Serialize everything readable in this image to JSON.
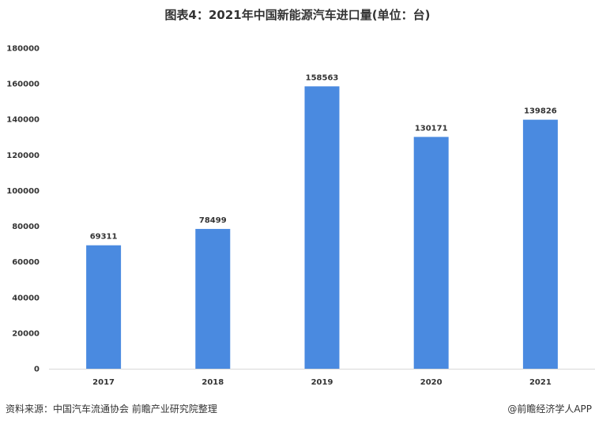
{
  "title": "图表4：2021年中国新能源汽车进口量(单位：台)",
  "source": "资料来源：中国汽车流通协会 前瞻产业研究院整理",
  "credit": "@前瞻经济学人APP",
  "colors": {
    "bar": "#4a8ae0",
    "axis": "#d9d9d9",
    "text": "#333333"
  },
  "chart_data": {
    "type": "bar",
    "title": "图表4：2021年中国新能源汽车进口量(单位：台)",
    "categories": [
      "2017",
      "2018",
      "2019",
      "2020",
      "2021"
    ],
    "values": [
      69311,
      78499,
      158563,
      130171,
      139826
    ],
    "ylim": [
      0,
      180000
    ],
    "yticks": [
      0,
      20000,
      40000,
      60000,
      80000,
      100000,
      120000,
      140000,
      160000,
      180000
    ],
    "grid": false,
    "data_labels": true
  }
}
